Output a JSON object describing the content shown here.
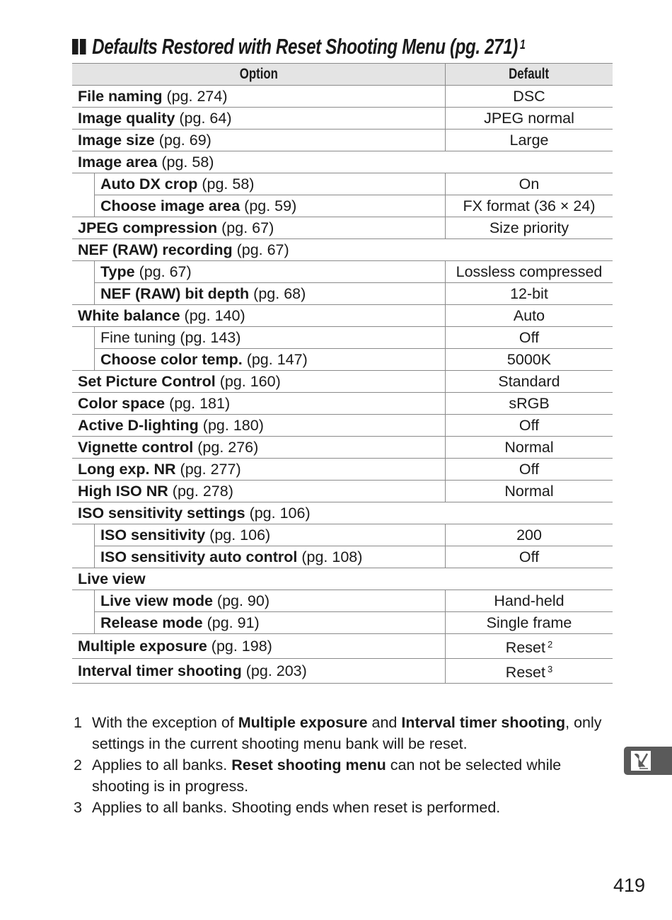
{
  "title": {
    "text": "Defaults Restored with Reset Shooting Menu (pg. 271)",
    "footnote": "1"
  },
  "table": {
    "headers": [
      "Option",
      "Default"
    ],
    "rows": [
      {
        "name": "File naming",
        "ref": "(pg. 274)",
        "value": "DSC",
        "level": 0,
        "bold": true
      },
      {
        "name": "Image quality",
        "ref": "(pg. 64)",
        "value": "JPEG normal",
        "level": 0,
        "bold": true
      },
      {
        "name": "Image size",
        "ref": "(pg. 69)",
        "value": "Large",
        "level": 0,
        "bold": true
      },
      {
        "name": "Image area",
        "ref": "(pg. 58)",
        "value": null,
        "level": 0,
        "bold": true
      },
      {
        "name": "Auto DX crop",
        "ref": "(pg. 58)",
        "value": "On",
        "level": 1,
        "bold": true
      },
      {
        "name": "Choose image area",
        "ref": "(pg. 59)",
        "value": "FX format (36 × 24)",
        "level": 1,
        "bold": true
      },
      {
        "name": "JPEG compression",
        "ref": "(pg. 67)",
        "value": "Size priority",
        "level": 0,
        "bold": true
      },
      {
        "name": "NEF (RAW) recording",
        "ref": "(pg. 67)",
        "value": null,
        "level": 0,
        "bold": true
      },
      {
        "name": "Type",
        "ref": "(pg. 67)",
        "value": "Lossless compressed",
        "level": 1,
        "bold": true
      },
      {
        "name": "NEF (RAW) bit depth",
        "ref": "(pg. 68)",
        "value": "12-bit",
        "level": 1,
        "bold": true
      },
      {
        "name": "White balance",
        "ref": "(pg. 140)",
        "value": "Auto",
        "level": 0,
        "bold": true
      },
      {
        "name": "Fine tuning",
        "ref": "(pg. 143)",
        "value": "Off",
        "level": 1,
        "bold": false
      },
      {
        "name": "Choose color temp.",
        "ref": "(pg. 147)",
        "value": "5000K",
        "level": 1,
        "bold": true
      },
      {
        "name": "Set Picture Control",
        "ref": "(pg. 160)",
        "value": "Standard",
        "level": 0,
        "bold": true
      },
      {
        "name": "Color space",
        "ref": "(pg. 181)",
        "value": "sRGB",
        "level": 0,
        "bold": true
      },
      {
        "name": "Active D-lighting",
        "ref": "(pg. 180)",
        "value": "Off",
        "level": 0,
        "bold": true
      },
      {
        "name": "Vignette control",
        "ref": "(pg. 276)",
        "value": "Normal",
        "level": 0,
        "bold": true
      },
      {
        "name": "Long exp.  NR",
        "ref": "(pg. 277)",
        "value": "Off",
        "level": 0,
        "bold": true
      },
      {
        "name": "High ISO NR",
        "ref": "(pg. 278)",
        "value": "Normal",
        "level": 0,
        "bold": true
      },
      {
        "name": "ISO sensitivity settings",
        "ref": "(pg. 106)",
        "value": null,
        "level": 0,
        "bold": true
      },
      {
        "name": "ISO sensitivity",
        "ref": "(pg. 106)",
        "value": "200",
        "level": 1,
        "bold": true
      },
      {
        "name": "ISO sensitivity auto control",
        "ref": "(pg. 108)",
        "value": "Off",
        "level": 1,
        "bold": true
      },
      {
        "name": "Live view",
        "ref": "",
        "value": null,
        "level": 0,
        "bold": true
      },
      {
        "name": "Live view mode",
        "ref": " (pg. 90)",
        "value": "Hand-held",
        "level": 1,
        "bold": true
      },
      {
        "name": "Release mode",
        "ref": " (pg. 91)",
        "value": "Single frame",
        "level": 1,
        "bold": true
      },
      {
        "name": "Multiple exposure",
        "ref": "(pg. 198)",
        "value": "Reset",
        "note": "2",
        "level": 0,
        "bold": true
      },
      {
        "name": "Interval timer shooting",
        "ref": "(pg. 203)",
        "value": "Reset",
        "note": "3",
        "level": 0,
        "bold": true
      }
    ]
  },
  "notes": [
    {
      "num": "1",
      "parts": [
        {
          "t": "With the exception of "
        },
        {
          "t": "Multiple exposure",
          "b": true
        },
        {
          "t": " and "
        },
        {
          "t": "Interval timer shooting",
          "b": true
        },
        {
          "t": ", only settings in the current shooting menu bank will be reset."
        }
      ]
    },
    {
      "num": "2",
      "parts": [
        {
          "t": "Applies to all banks.  "
        },
        {
          "t": "Reset shooting menu",
          "b": true
        },
        {
          "t": " can not be selected while shooting is in progress."
        }
      ]
    },
    {
      "num": "3",
      "parts": [
        {
          "t": "Applies to all banks.  Shooting ends when reset is performed."
        }
      ]
    }
  ],
  "side_tab": {
    "icon": "custom-settings-pencil-icon",
    "color": "#5a5a5a"
  },
  "page_number": "419"
}
